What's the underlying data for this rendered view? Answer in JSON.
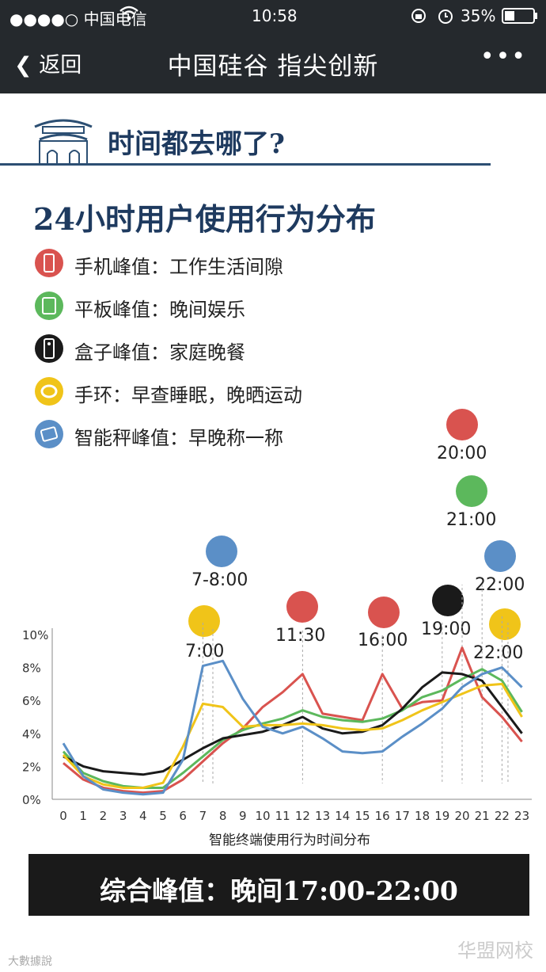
{
  "status_bar": {
    "carrier": "●●●●○ 中国电信",
    "time": "10:58",
    "battery": "35%"
  },
  "nav": {
    "back_label": "返回",
    "title": "中国硅谷 指尖创新",
    "more_label": "•••"
  },
  "section_title": "时间都去哪了?",
  "main_title": "24小时用户使用行为分布",
  "legend": [
    {
      "label": "手机峰值：工作生活间隙",
      "color": "#d9534f",
      "icon": "phone-icon"
    },
    {
      "label": "平板峰值：晚间娱乐",
      "color": "#5cb85c",
      "icon": "tablet-icon"
    },
    {
      "label": "盒子峰值：家庭晚餐",
      "color": "#1a1a1a",
      "icon": "remote-icon"
    },
    {
      "label": "手环：早查睡眠，晚晒运动",
      "color": "#f0c419",
      "icon": "wristband-icon"
    },
    {
      "label": "智能秤峰值：早晚称一称",
      "color": "#5b8fc7",
      "icon": "scale-icon"
    }
  ],
  "annotations": [
    {
      "text": "7-8:00",
      "icon": "scale-icon",
      "color": "#5b8fc7"
    },
    {
      "text": "7:00",
      "icon": "wristband-icon",
      "color": "#f0c419"
    },
    {
      "text": "11:30",
      "icon": "phone-icon",
      "color": "#d9534f"
    },
    {
      "text": "16:00",
      "icon": "phone-icon",
      "color": "#d9534f"
    },
    {
      "text": "19:00",
      "icon": "remote-icon",
      "color": "#1a1a1a"
    },
    {
      "text": "20:00",
      "icon": "phone-icon",
      "color": "#d9534f"
    },
    {
      "text": "21:00",
      "icon": "tablet-icon",
      "color": "#5cb85c"
    },
    {
      "text": "22:00",
      "icon": "scale-icon",
      "color": "#5b8fc7"
    },
    {
      "text": "22:00",
      "icon": "wristband-icon",
      "color": "#f0c419"
    }
  ],
  "chart_data": {
    "type": "line",
    "xlabel": "智能终端使用行为时间分布",
    "ylabel": "",
    "x": [
      0,
      1,
      2,
      3,
      4,
      5,
      6,
      7,
      8,
      9,
      10,
      11,
      12,
      13,
      14,
      15,
      16,
      17,
      18,
      19,
      20,
      21,
      22,
      23
    ],
    "y_ticks": [
      "0%",
      "2%",
      "4%",
      "6%",
      "8%",
      "10%"
    ],
    "ylim": [
      0,
      10
    ],
    "series": [
      {
        "color": "#d9534f",
        "values": [
          2.2,
          1.2,
          0.7,
          0.5,
          0.4,
          0.5,
          1.2,
          2.3,
          3.4,
          4.3,
          5.6,
          6.5,
          7.6,
          5.2,
          5.0,
          4.8,
          7.6,
          5.5,
          5.9,
          6.0,
          9.2,
          6.2,
          5.0,
          3.5
        ]
      },
      {
        "color": "#5cb85c",
        "values": [
          2.9,
          1.6,
          1.1,
          0.8,
          0.7,
          0.7,
          1.6,
          2.6,
          3.6,
          4.2,
          4.6,
          4.9,
          5.4,
          5.0,
          4.8,
          4.7,
          4.9,
          5.4,
          6.2,
          6.6,
          7.3,
          7.9,
          7.2,
          5.3
        ]
      },
      {
        "color": "#1a1a1a",
        "values": [
          2.6,
          2.0,
          1.7,
          1.6,
          1.5,
          1.7,
          2.4,
          3.1,
          3.7,
          3.9,
          4.1,
          4.5,
          5.0,
          4.3,
          4.0,
          4.1,
          4.5,
          5.5,
          6.8,
          7.7,
          7.6,
          7.2,
          5.6,
          4.0
        ]
      },
      {
        "color": "#f0c419",
        "values": [
          2.7,
          1.4,
          0.9,
          0.7,
          0.7,
          1.0,
          3.2,
          5.8,
          5.6,
          4.4,
          4.5,
          4.5,
          4.6,
          4.5,
          4.3,
          4.2,
          4.3,
          4.8,
          5.4,
          5.9,
          6.4,
          6.9,
          7.0,
          5.0
        ]
      },
      {
        "color": "#5b8fc7",
        "values": [
          3.4,
          1.4,
          0.6,
          0.4,
          0.3,
          0.4,
          2.4,
          8.1,
          8.4,
          6.1,
          4.4,
          4.0,
          4.4,
          3.7,
          2.9,
          2.8,
          2.9,
          3.8,
          4.6,
          5.5,
          6.8,
          7.6,
          8.0,
          6.8
        ]
      }
    ]
  },
  "footer": {
    "peak_text": "综合峰值：晚间17:00-22:00"
  },
  "watermark": {
    "left": "大數據說",
    "right": "华盟网校"
  }
}
